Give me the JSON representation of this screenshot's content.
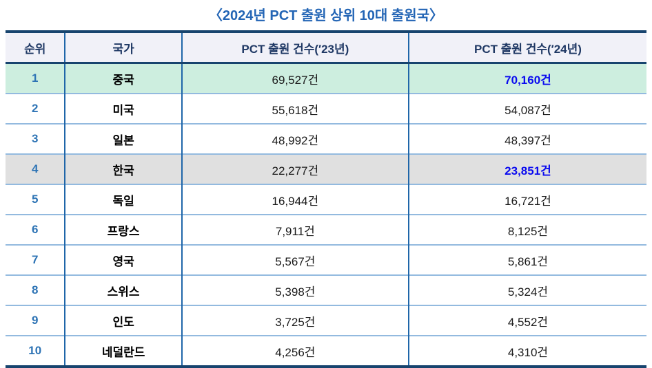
{
  "title": "〈2024년 PCT 출원 상위 10대 출원국〉",
  "table": {
    "headers": [
      "순위",
      "국가",
      "PCT 출원 건수(′23년)",
      "PCT 출원 건수(′24년)"
    ],
    "rows": [
      {
        "rank": "1",
        "country": "중국",
        "y23": "69,527건",
        "y24": "70,160건",
        "y24_highlight": true,
        "bg": "mint"
      },
      {
        "rank": "2",
        "country": "미국",
        "y23": "55,618건",
        "y24": "54,087건",
        "y24_highlight": false,
        "bg": "none"
      },
      {
        "rank": "3",
        "country": "일본",
        "y23": "48,992건",
        "y24": "48,397건",
        "y24_highlight": false,
        "bg": "none"
      },
      {
        "rank": "4",
        "country": "한국",
        "y23": "22,277건",
        "y24": "23,851건",
        "y24_highlight": true,
        "bg": "gray"
      },
      {
        "rank": "5",
        "country": "독일",
        "y23": "16,944건",
        "y24": "16,721건",
        "y24_highlight": false,
        "bg": "none"
      },
      {
        "rank": "6",
        "country": "프랑스",
        "y23": "7,911건",
        "y24": "8,125건",
        "y24_highlight": false,
        "bg": "none"
      },
      {
        "rank": "7",
        "country": "영국",
        "y23": "5,567건",
        "y24": "5,861건",
        "y24_highlight": false,
        "bg": "none"
      },
      {
        "rank": "8",
        "country": "스위스",
        "y23": "5,398건",
        "y24": "5,324건",
        "y24_highlight": false,
        "bg": "none"
      },
      {
        "rank": "9",
        "country": "인도",
        "y23": "3,725건",
        "y24": "4,552건",
        "y24_highlight": false,
        "bg": "none"
      },
      {
        "rank": "10",
        "country": "네덜란드",
        "y23": "4,256건",
        "y24": "4,310건",
        "y24_highlight": false,
        "bg": "none"
      }
    ]
  },
  "colors": {
    "title_blue": "#2365B5",
    "header_bg": "#F1F1F8",
    "header_text": "#1F3864",
    "border_dark": "#17446E",
    "border_vertical": "#1F66A9",
    "border_row": "#93BADF",
    "rank_blue": "#2E74B5",
    "mint_row_bg": "#CDEEDF",
    "gray_row_bg": "#E0E0E0",
    "highlight_value": "#0A0AF0",
    "value_text": "#1A1A1A"
  },
  "chart_data": {
    "type": "table",
    "title": "〈2024년 PCT 출원 상위 10대 출원국〉",
    "columns": [
      "순위",
      "국가",
      "PCT 출원 건수(′23년)",
      "PCT 출원 건수(′24년)"
    ],
    "rows": [
      [
        1,
        "중국",
        69527,
        70160
      ],
      [
        2,
        "미국",
        55618,
        54087
      ],
      [
        3,
        "일본",
        48992,
        48397
      ],
      [
        4,
        "한국",
        22277,
        23851
      ],
      [
        5,
        "독일",
        16944,
        16721
      ],
      [
        6,
        "프랑스",
        7911,
        8125
      ],
      [
        7,
        "영국",
        5567,
        5861
      ],
      [
        8,
        "스위스",
        5398,
        5324
      ],
      [
        9,
        "인도",
        3725,
        4552
      ],
      [
        10,
        "네덜란드",
        4256,
        4310
      ]
    ],
    "notes": "Rows for 중국(rank 1, mint highlight) and 한국(rank 4, gray highlight) have their ′24 values emphasized in bold blue.",
    "unit": "건"
  }
}
